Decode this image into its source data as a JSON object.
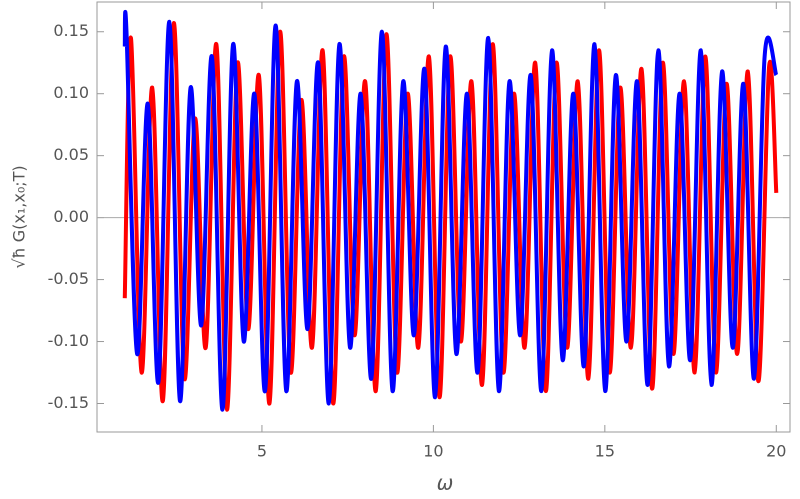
{
  "chart_data": {
    "type": "line",
    "xlabel": "ω",
    "ylabel": "√ħ G(x₁,x₀;T)",
    "xlim": [
      0.19,
      20.4
    ],
    "ylim": [
      -0.173,
      0.174
    ],
    "xticks": [
      5,
      10,
      15,
      20
    ],
    "yticks": [
      {
        "value": -0.15,
        "label": "-0.15"
      },
      {
        "value": -0.1,
        "label": "-0.10"
      },
      {
        "value": -0.05,
        "label": "-0.05"
      },
      {
        "value": 0,
        "label": "0.00"
      },
      {
        "value": 0.05,
        "label": "0.05"
      },
      {
        "value": 0.1,
        "label": "0.10"
      },
      0.15
    ],
    "zero_line": true,
    "series": [
      {
        "color": "#ff0000",
        "x": [
          1.0,
          1.18,
          1.49,
          1.8,
          2.11,
          2.43,
          2.74,
          3.05,
          3.36,
          3.67,
          3.98,
          4.29,
          4.6,
          4.91,
          5.22,
          5.53,
          5.84,
          6.15,
          6.46,
          6.77,
          7.08,
          7.39,
          7.7,
          8.01,
          8.32,
          8.63,
          8.94,
          9.25,
          9.56,
          9.87,
          10.18,
          10.49,
          10.8,
          11.11,
          11.42,
          11.73,
          12.04,
          12.35,
          12.66,
          12.97,
          13.28,
          13.59,
          13.9,
          14.21,
          14.52,
          14.83,
          15.14,
          15.45,
          15.76,
          16.07,
          16.38,
          16.69,
          17.0,
          17.31,
          17.62,
          17.93,
          18.24,
          18.55,
          18.86,
          19.17,
          19.48,
          19.79,
          20.0
        ],
        "values": [
          -0.065,
          0.145,
          -0.125,
          0.105,
          -0.148,
          0.157,
          -0.13,
          0.08,
          -0.105,
          0.14,
          -0.155,
          0.125,
          -0.09,
          0.115,
          -0.15,
          0.15,
          -0.125,
          0.095,
          -0.105,
          0.135,
          -0.15,
          0.13,
          -0.095,
          0.11,
          -0.14,
          0.148,
          -0.125,
          0.1,
          -0.105,
          0.13,
          -0.145,
          0.13,
          -0.1,
          0.11,
          -0.135,
          0.14,
          -0.125,
          0.1,
          -0.105,
          0.125,
          -0.14,
          0.125,
          -0.105,
          0.11,
          -0.13,
          0.135,
          -0.125,
          0.105,
          -0.105,
          0.12,
          -0.138,
          0.125,
          -0.11,
          0.11,
          -0.125,
          0.13,
          -0.125,
          0.108,
          -0.11,
          0.118,
          -0.132,
          0.122,
          0.02
        ]
      },
      {
        "color": "#0000ff",
        "x": [
          1.0,
          1.05,
          1.36,
          1.67,
          1.98,
          2.3,
          2.61,
          2.92,
          3.23,
          3.54,
          3.85,
          4.16,
          4.47,
          4.78,
          5.09,
          5.4,
          5.71,
          6.02,
          6.33,
          6.64,
          6.95,
          7.26,
          7.57,
          7.88,
          8.19,
          8.5,
          8.81,
          9.12,
          9.43,
          9.74,
          10.05,
          10.36,
          10.67,
          10.98,
          11.29,
          11.6,
          11.91,
          12.22,
          12.53,
          12.84,
          13.15,
          13.46,
          13.77,
          14.08,
          14.39,
          14.7,
          15.01,
          15.32,
          15.63,
          15.94,
          16.25,
          16.56,
          16.87,
          17.18,
          17.49,
          17.8,
          18.11,
          18.42,
          18.73,
          19.04,
          19.35,
          19.66,
          20.0
        ],
        "values": [
          0.138,
          0.15,
          -0.11,
          0.092,
          -0.133,
          0.158,
          -0.148,
          0.105,
          -0.087,
          0.13,
          -0.155,
          0.14,
          -0.1,
          0.1,
          -0.14,
          0.155,
          -0.14,
          0.11,
          -0.09,
          0.125,
          -0.15,
          0.14,
          -0.105,
          0.1,
          -0.13,
          0.15,
          -0.14,
          0.11,
          -0.095,
          0.12,
          -0.145,
          0.138,
          -0.11,
          0.1,
          -0.125,
          0.145,
          -0.14,
          0.11,
          -0.095,
          0.115,
          -0.14,
          0.135,
          -0.115,
          0.1,
          -0.12,
          0.14,
          -0.14,
          0.115,
          -0.1,
          0.11,
          -0.135,
          0.135,
          -0.12,
          0.1,
          -0.115,
          0.135,
          -0.135,
          0.118,
          -0.105,
          0.108,
          -0.13,
          0.13,
          0.115
        ]
      }
    ]
  }
}
